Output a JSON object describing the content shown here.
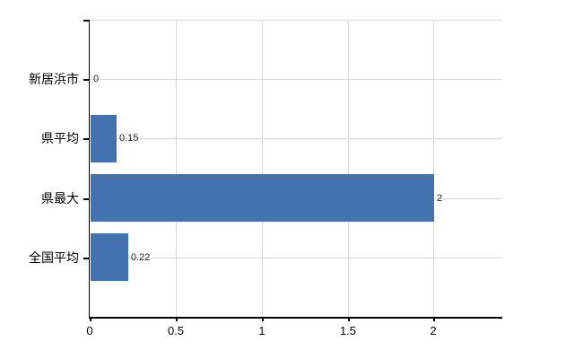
{
  "chart_data": {
    "type": "bar",
    "orientation": "horizontal",
    "categories": [
      "新居浜市",
      "県平均",
      "県最大",
      "全国平均"
    ],
    "values": [
      0,
      0.15,
      2,
      0.22
    ],
    "value_labels": [
      "0",
      "0.15",
      "2",
      "0.22"
    ],
    "xlim": [
      0,
      2.4
    ],
    "xticks": [
      0,
      0.5,
      1,
      1.5,
      2
    ],
    "xtick_labels": [
      "0",
      "0.5",
      "1",
      "1.5",
      "2"
    ],
    "bar_color": "#4472b0",
    "grid_color": "#d8d8d8",
    "axis_color": "#000000",
    "grid": true,
    "legend": false,
    "title": ""
  }
}
